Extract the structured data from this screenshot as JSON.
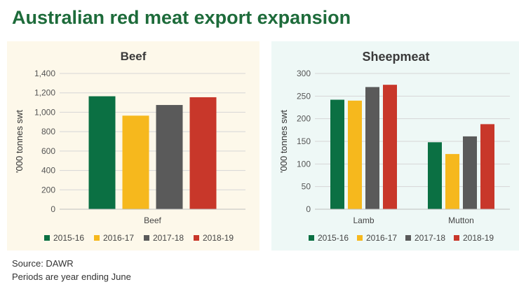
{
  "title": "Australian red meat export expansion",
  "source_text": "Source: DAWR",
  "note_text": "Periods are year ending June",
  "colors": {
    "2015-16": "#0b7043",
    "2016-17": "#f6b81d",
    "2017-18": "#5a5a5a",
    "2018-19": "#c8372a"
  },
  "chart_data": [
    {
      "type": "bar",
      "title": "Beef",
      "xlabel": "",
      "ylabel": "'000 tonnes swt",
      "categories": [
        "Beef"
      ],
      "ylim": [
        0,
        1400
      ],
      "yticks": [
        0,
        200,
        400,
        600,
        800,
        1000,
        1200,
        1400
      ],
      "ytick_labels": [
        "0",
        "200",
        "400",
        "600",
        "800",
        "1,000",
        "1,200",
        "1,400"
      ],
      "grid": true,
      "legend_placement": "bottom",
      "series": [
        {
          "name": "2015-16",
          "values": [
            1165
          ]
        },
        {
          "name": "2016-17",
          "values": [
            965
          ]
        },
        {
          "name": "2017-18",
          "values": [
            1075
          ]
        },
        {
          "name": "2018-19",
          "values": [
            1155
          ]
        }
      ]
    },
    {
      "type": "bar",
      "title": "Sheepmeat",
      "xlabel": "",
      "ylabel": "'000 tonnes swt",
      "categories": [
        "Lamb",
        "Mutton"
      ],
      "ylim": [
        0,
        300
      ],
      "yticks": [
        0,
        50,
        100,
        150,
        200,
        250,
        300
      ],
      "ytick_labels": [
        "0",
        "50",
        "100",
        "150",
        "200",
        "250",
        "300"
      ],
      "grid": true,
      "legend_placement": "bottom",
      "series": [
        {
          "name": "2015-16",
          "values": [
            242,
            148
          ]
        },
        {
          "name": "2016-17",
          "values": [
            240,
            122
          ]
        },
        {
          "name": "2017-18",
          "values": [
            270,
            161
          ]
        },
        {
          "name": "2018-19",
          "values": [
            275,
            188
          ]
        }
      ]
    }
  ]
}
